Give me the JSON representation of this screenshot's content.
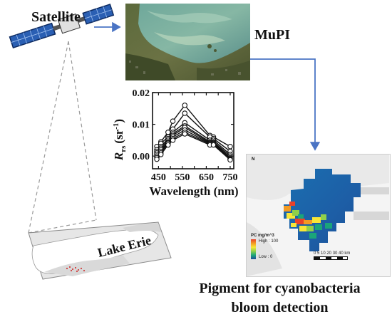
{
  "labels": {
    "satellite": "Satellite",
    "mupi": "MuPI",
    "lake": "Lake Erie",
    "caption_line1": "Pigment for cyanobacteria",
    "caption_line2": "bloom detection"
  },
  "colors": {
    "arrow": "#4a74c4",
    "curve": "#111111",
    "satellite_panel": "#2a5fb3"
  },
  "map_legend": {
    "title": "PC mg/m^3",
    "high": "High : 100",
    "low": "Low : 0",
    "scale_ticks": "0 5 10    20    30    40",
    "scale_unit": "km",
    "north": "N"
  },
  "chart_data": {
    "type": "line",
    "ylabel_base": "R",
    "ylabel_sub": "rs",
    "ylabel_unit": "(sr",
    "ylabel_sup": "-1",
    "ylabel_close": ")",
    "xlabel": "Wavelength (nm)",
    "xlim": [
      425,
      765
    ],
    "ylim": [
      -0.004,
      0.02
    ],
    "xticks": [
      450,
      500,
      550,
      600,
      650,
      700,
      750
    ],
    "xtick_labels": [
      "450",
      "",
      "550",
      "",
      "650",
      "",
      "750"
    ],
    "yticks": [
      0.0,
      0.01,
      0.02
    ],
    "ytick_labels": [
      "0.00",
      "0.01",
      "0.02"
    ],
    "x": [
      443,
      460,
      490,
      510,
      560,
      665,
      680,
      750
    ],
    "series": [
      {
        "values": [
          0.003,
          0.0045,
          0.0075,
          0.011,
          0.016,
          0.0065,
          0.006,
          0.003
        ]
      },
      {
        "values": [
          0.002,
          0.004,
          0.006,
          0.0085,
          0.0135,
          0.006,
          0.0055,
          0.0015
        ]
      },
      {
        "values": [
          0.0015,
          0.003,
          0.0055,
          0.0075,
          0.0105,
          0.005,
          0.005,
          0.0005
        ]
      },
      {
        "values": [
          0.001,
          0.0025,
          0.005,
          0.007,
          0.0095,
          0.0045,
          0.0045,
          0.0
        ]
      },
      {
        "values": [
          0.0005,
          0.002,
          0.0045,
          0.0065,
          0.009,
          0.0042,
          0.0042,
          -0.0005
        ]
      },
      {
        "values": [
          0.0,
          0.0015,
          0.0042,
          0.006,
          0.0082,
          0.004,
          0.004,
          -0.0008
        ]
      },
      {
        "values": [
          -0.0005,
          0.001,
          0.004,
          0.0055,
          0.0075,
          0.0038,
          0.0038,
          -0.001
        ]
      },
      {
        "values": [
          -0.001,
          0.0005,
          0.0035,
          0.005,
          0.007,
          0.0035,
          0.0035,
          -0.0012
        ]
      }
    ]
  }
}
